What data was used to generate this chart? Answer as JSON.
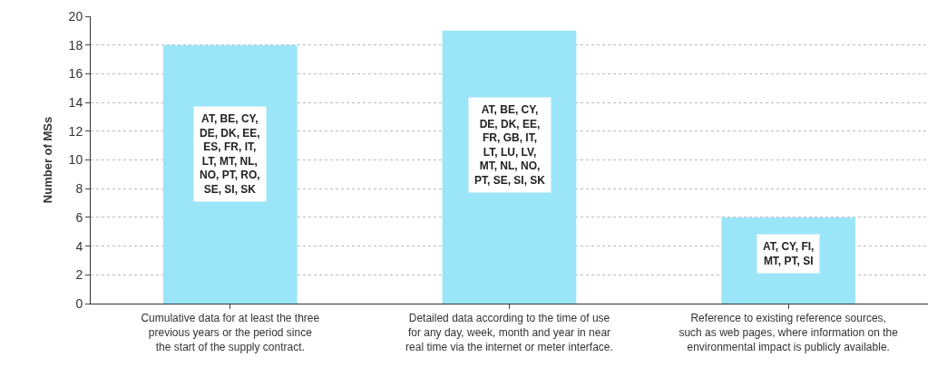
{
  "chart_data": {
    "type": "bar",
    "ylabel": "Number of MSs",
    "categories": [
      "Cumulative data for at least the three\nprevious years or the period since\nthe start of the supply contract.",
      "Detailed data according to the time of use\nfor any day, week, month and year in near\nreal time via the internet or meter interface.",
      "Reference to existing reference sources,\nsuch as web pages, where information on the\nenvironmental impact is publicly available."
    ],
    "values": [
      18,
      19,
      6
    ],
    "color": "#9be5f9",
    "ylim": [
      0,
      20
    ],
    "yticks": [
      0,
      2,
      4,
      6,
      8,
      10,
      12,
      14,
      16,
      18,
      20
    ],
    "grid": "y",
    "annotations": [
      "AT, BE, CY,\nDE, DK, EE,\nES, FR, IT,\nLT, MT, NL,\nNO, PT, RO,\nSE, SI, SK",
      "AT, BE, CY,\nDE, DK, EE,\nFR, GB, IT,\nLT, LU, LV,\nMT, NL, NO,\nPT, SE, SI, SK",
      "AT, CY, FI,\nMT, PT, SI"
    ]
  }
}
